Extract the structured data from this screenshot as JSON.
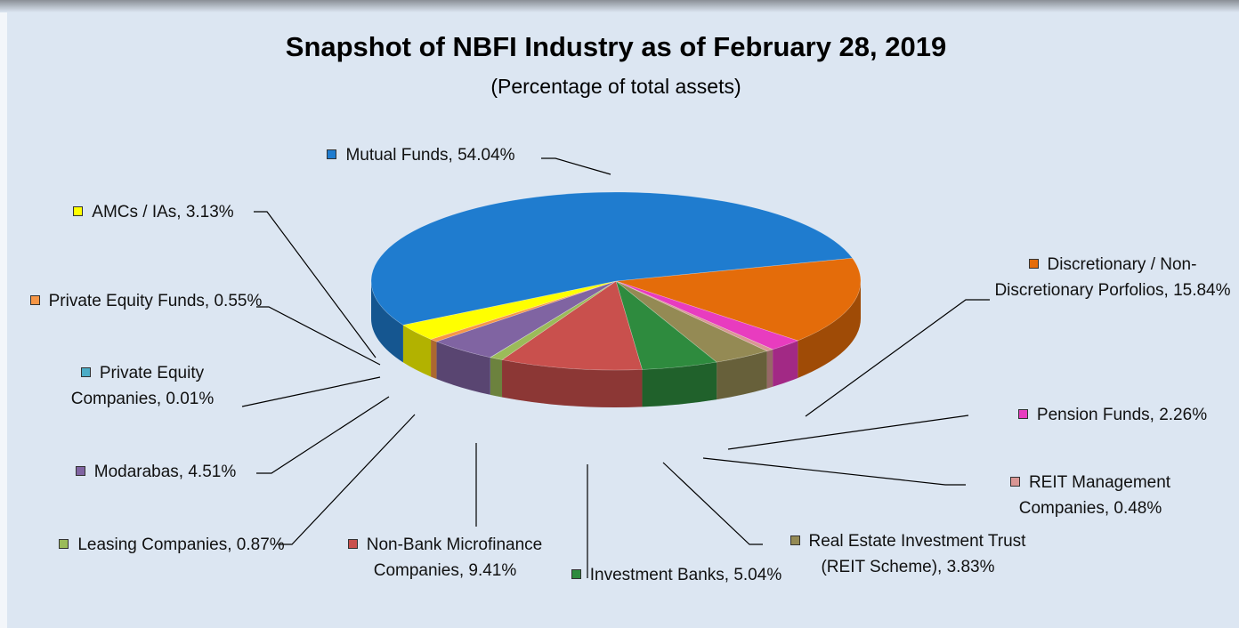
{
  "chart_data": {
    "type": "pie",
    "title": "Snapshot of NBFI Industry as of February 28, 2019",
    "subtitle": "(Percentage of total assets)",
    "categories": [
      "Discretionary / Non-Discretionary Porfolios",
      "Pension Funds",
      "REIT Management Companies",
      "Real Estate Investment Trust (REIT Scheme)",
      "Investment Banks",
      "Non-Bank Microfinance Companies",
      "Leasing Companies",
      "Private Equity Companies",
      "Modarabas",
      "Private Equity Funds",
      "AMCs / IAs",
      "Mutual Funds"
    ],
    "values": [
      15.84,
      2.26,
      0.48,
      3.83,
      5.04,
      9.41,
      0.87,
      0.01,
      4.51,
      0.55,
      3.13,
      54.04
    ],
    "value_labels": [
      "Discretionary / Non-Discretionary Porfolios, 15.84%",
      "Pension Funds, 2.26%",
      "REIT Management Companies, 0.48%",
      "Real Estate Investment Trust (REIT Scheme), 3.83%",
      "Investment Banks, 5.04%",
      "Non-Bank Microfinance Companies, 9.41%",
      "Leasing Companies, 0.87%",
      "Private Equity Companies, 0.01%",
      "Modarabas, 4.51%",
      "Private Equity Funds, 0.55%",
      "AMCs / IAs, 3.13%",
      "Mutual Funds, 54.04%"
    ],
    "colors": [
      "#e46c0a",
      "#e83cbf",
      "#d99694",
      "#948a54",
      "#2e8b3e",
      "#c9504d",
      "#9bbb59",
      "#4bacc6",
      "#8064a2",
      "#f79646",
      "#ffff00",
      "#1f7ccf"
    ]
  }
}
